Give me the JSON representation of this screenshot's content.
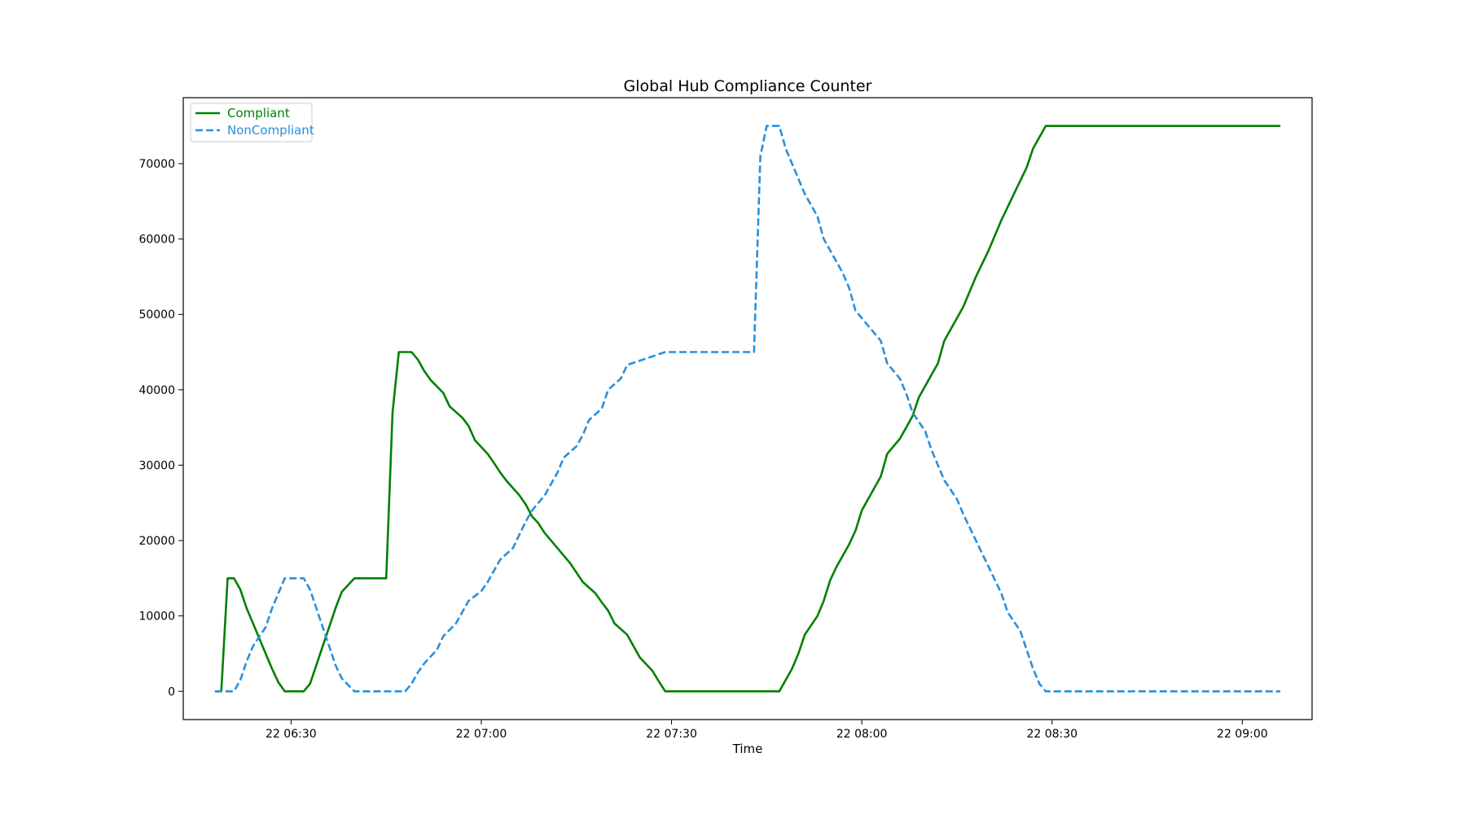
{
  "chart_data": {
    "type": "line",
    "title": "Global Hub Compliance Counter",
    "xlabel": "Time",
    "ylabel": "",
    "x_axis": {
      "type": "time",
      "range": [
        "2024-01-22 06:13",
        "2024-01-22 09:11"
      ],
      "tick_values": [
        "06:30",
        "07:00",
        "07:30",
        "08:00",
        "08:30",
        "09:00"
      ],
      "tick_labels": [
        "22 06:30",
        "22 07:00",
        "22 07:30",
        "22 08:00",
        "22 08:30",
        "22 09:00"
      ]
    },
    "y_axis": {
      "range": [
        -3750,
        78750
      ],
      "tick_values": [
        0,
        10000,
        20000,
        30000,
        40000,
        50000,
        60000,
        70000
      ],
      "tick_labels": [
        "0",
        "10000",
        "20000",
        "30000",
        "40000",
        "50000",
        "60000",
        "70000"
      ]
    },
    "grid": false,
    "legend": {
      "placement": "top-left"
    },
    "series": [
      {
        "name": "Compliant",
        "color": "#008000",
        "dash": "solid",
        "points": [
          [
            "06:18",
            0
          ],
          [
            "06:19",
            0
          ],
          [
            "06:20",
            15000
          ],
          [
            "06:21",
            15000
          ],
          [
            "06:22",
            13500
          ],
          [
            "06:23",
            11000
          ],
          [
            "06:24",
            9000
          ],
          [
            "06:25",
            7000
          ],
          [
            "06:26",
            5000
          ],
          [
            "06:27",
            3000
          ],
          [
            "06:28",
            1200
          ],
          [
            "06:29",
            0
          ],
          [
            "06:32",
            0
          ],
          [
            "06:33",
            1000
          ],
          [
            "06:34",
            3500
          ],
          [
            "06:35",
            6000
          ],
          [
            "06:36",
            8500
          ],
          [
            "06:37",
            11000
          ],
          [
            "06:38",
            13200
          ],
          [
            "06:40",
            15000
          ],
          [
            "06:45",
            15000
          ],
          [
            "06:46",
            37000
          ],
          [
            "06:47",
            45000
          ],
          [
            "06:49",
            45000
          ],
          [
            "06:50",
            44000
          ],
          [
            "06:51",
            42500
          ],
          [
            "06:52",
            41300
          ],
          [
            "06:54",
            39600
          ],
          [
            "06:55",
            37800
          ],
          [
            "06:57",
            36300
          ],
          [
            "06:58",
            35200
          ],
          [
            "06:59",
            33300
          ],
          [
            "07:01",
            31500
          ],
          [
            "07:02",
            30300
          ],
          [
            "07:03",
            29000
          ],
          [
            "07:04",
            27900
          ],
          [
            "07:06",
            26000
          ],
          [
            "07:07",
            24800
          ],
          [
            "07:08",
            23200
          ],
          [
            "07:09",
            22300
          ],
          [
            "07:10",
            21000
          ],
          [
            "07:12",
            19000
          ],
          [
            "07:14",
            17000
          ],
          [
            "07:16",
            14500
          ],
          [
            "07:18",
            13000
          ],
          [
            "07:19",
            11800
          ],
          [
            "07:20",
            10700
          ],
          [
            "07:21",
            9000
          ],
          [
            "07:23",
            7500
          ],
          [
            "07:24",
            6000
          ],
          [
            "07:25",
            4500
          ],
          [
            "07:27",
            2700
          ],
          [
            "07:28",
            1300
          ],
          [
            "07:29",
            0
          ],
          [
            "07:47",
            0
          ],
          [
            "07:49",
            3000
          ],
          [
            "07:50",
            5000
          ],
          [
            "07:51",
            7500
          ],
          [
            "07:53",
            10000
          ],
          [
            "07:54",
            12000
          ],
          [
            "07:55",
            14700
          ],
          [
            "07:56",
            16500
          ],
          [
            "07:58",
            19500
          ],
          [
            "07:59",
            21300
          ],
          [
            "08:00",
            24000
          ],
          [
            "08:01",
            25500
          ],
          [
            "08:02",
            27000
          ],
          [
            "08:03",
            28500
          ],
          [
            "08:04",
            31500
          ],
          [
            "08:06",
            33500
          ],
          [
            "08:07",
            35000
          ],
          [
            "08:08",
            36500
          ],
          [
            "08:09",
            39000
          ],
          [
            "08:10",
            40500
          ],
          [
            "08:11",
            42000
          ],
          [
            "08:12",
            43500
          ],
          [
            "08:13",
            46500
          ],
          [
            "08:14",
            48000
          ],
          [
            "08:16",
            51000
          ],
          [
            "08:18",
            55000
          ],
          [
            "08:20",
            58500
          ],
          [
            "08:21",
            60500
          ],
          [
            "08:22",
            62500
          ],
          [
            "08:24",
            66000
          ],
          [
            "08:26",
            69500
          ],
          [
            "08:27",
            72000
          ],
          [
            "08:29",
            75000
          ],
          [
            "09:06",
            75000
          ]
        ]
      },
      {
        "name": "NonCompliant",
        "color": "#2a90dc",
        "dash": "dashed",
        "points": [
          [
            "06:18",
            0
          ],
          [
            "06:21",
            0
          ],
          [
            "06:22",
            1500
          ],
          [
            "06:23",
            4000
          ],
          [
            "06:24",
            6000
          ],
          [
            "06:26",
            8500
          ],
          [
            "06:27",
            11000
          ],
          [
            "06:28",
            13000
          ],
          [
            "06:29",
            15000
          ],
          [
            "06:32",
            15000
          ],
          [
            "06:33",
            13500
          ],
          [
            "06:34",
            11000
          ],
          [
            "06:35",
            8500
          ],
          [
            "06:36",
            6000
          ],
          [
            "06:37",
            3500
          ],
          [
            "06:38",
            1700
          ],
          [
            "06:40",
            0
          ],
          [
            "06:48",
            0
          ],
          [
            "06:49",
            1000
          ],
          [
            "06:50",
            2500
          ],
          [
            "06:51",
            3700
          ],
          [
            "06:53",
            5500
          ],
          [
            "06:54",
            7300
          ],
          [
            "06:56",
            9000
          ],
          [
            "06:57",
            10500
          ],
          [
            "06:58",
            12000
          ],
          [
            "07:00",
            13300
          ],
          [
            "07:01",
            14500
          ],
          [
            "07:02",
            16000
          ],
          [
            "07:03",
            17500
          ],
          [
            "07:05",
            19000
          ],
          [
            "07:06",
            20800
          ],
          [
            "07:07",
            22500
          ],
          [
            "07:08",
            24000
          ],
          [
            "07:10",
            26000
          ],
          [
            "07:11",
            27500
          ],
          [
            "07:12",
            29000
          ],
          [
            "07:13",
            31000
          ],
          [
            "07:15",
            32500
          ],
          [
            "07:16",
            34000
          ],
          [
            "07:17",
            36000
          ],
          [
            "07:19",
            37500
          ],
          [
            "07:20",
            40000
          ],
          [
            "07:22",
            41500
          ],
          [
            "07:23",
            43300
          ],
          [
            "07:29",
            45000
          ],
          [
            "07:43",
            45000
          ],
          [
            "07:44",
            71000
          ],
          [
            "07:45",
            75000
          ],
          [
            "07:47",
            75000
          ],
          [
            "07:48",
            72000
          ],
          [
            "07:50",
            68000
          ],
          [
            "07:51",
            66000
          ],
          [
            "07:53",
            63000
          ],
          [
            "07:54",
            60000
          ],
          [
            "07:55",
            58500
          ],
          [
            "07:57",
            55500
          ],
          [
            "07:58",
            53500
          ],
          [
            "07:59",
            50500
          ],
          [
            "08:01",
            48500
          ],
          [
            "08:03",
            46500
          ],
          [
            "08:04",
            43500
          ],
          [
            "08:06",
            41500
          ],
          [
            "08:07",
            39500
          ],
          [
            "08:08",
            37000
          ],
          [
            "08:10",
            34500
          ],
          [
            "08:11",
            32000
          ],
          [
            "08:12",
            30000
          ],
          [
            "08:13",
            28000
          ],
          [
            "08:15",
            25500
          ],
          [
            "08:16",
            23500
          ],
          [
            "08:18",
            20000
          ],
          [
            "08:20",
            16500
          ],
          [
            "08:22",
            13000
          ],
          [
            "08:23",
            10500
          ],
          [
            "08:25",
            8000
          ],
          [
            "08:26",
            5500
          ],
          [
            "08:27",
            3000
          ],
          [
            "08:28",
            1000
          ],
          [
            "08:29",
            0
          ],
          [
            "09:06",
            0
          ]
        ]
      }
    ]
  }
}
